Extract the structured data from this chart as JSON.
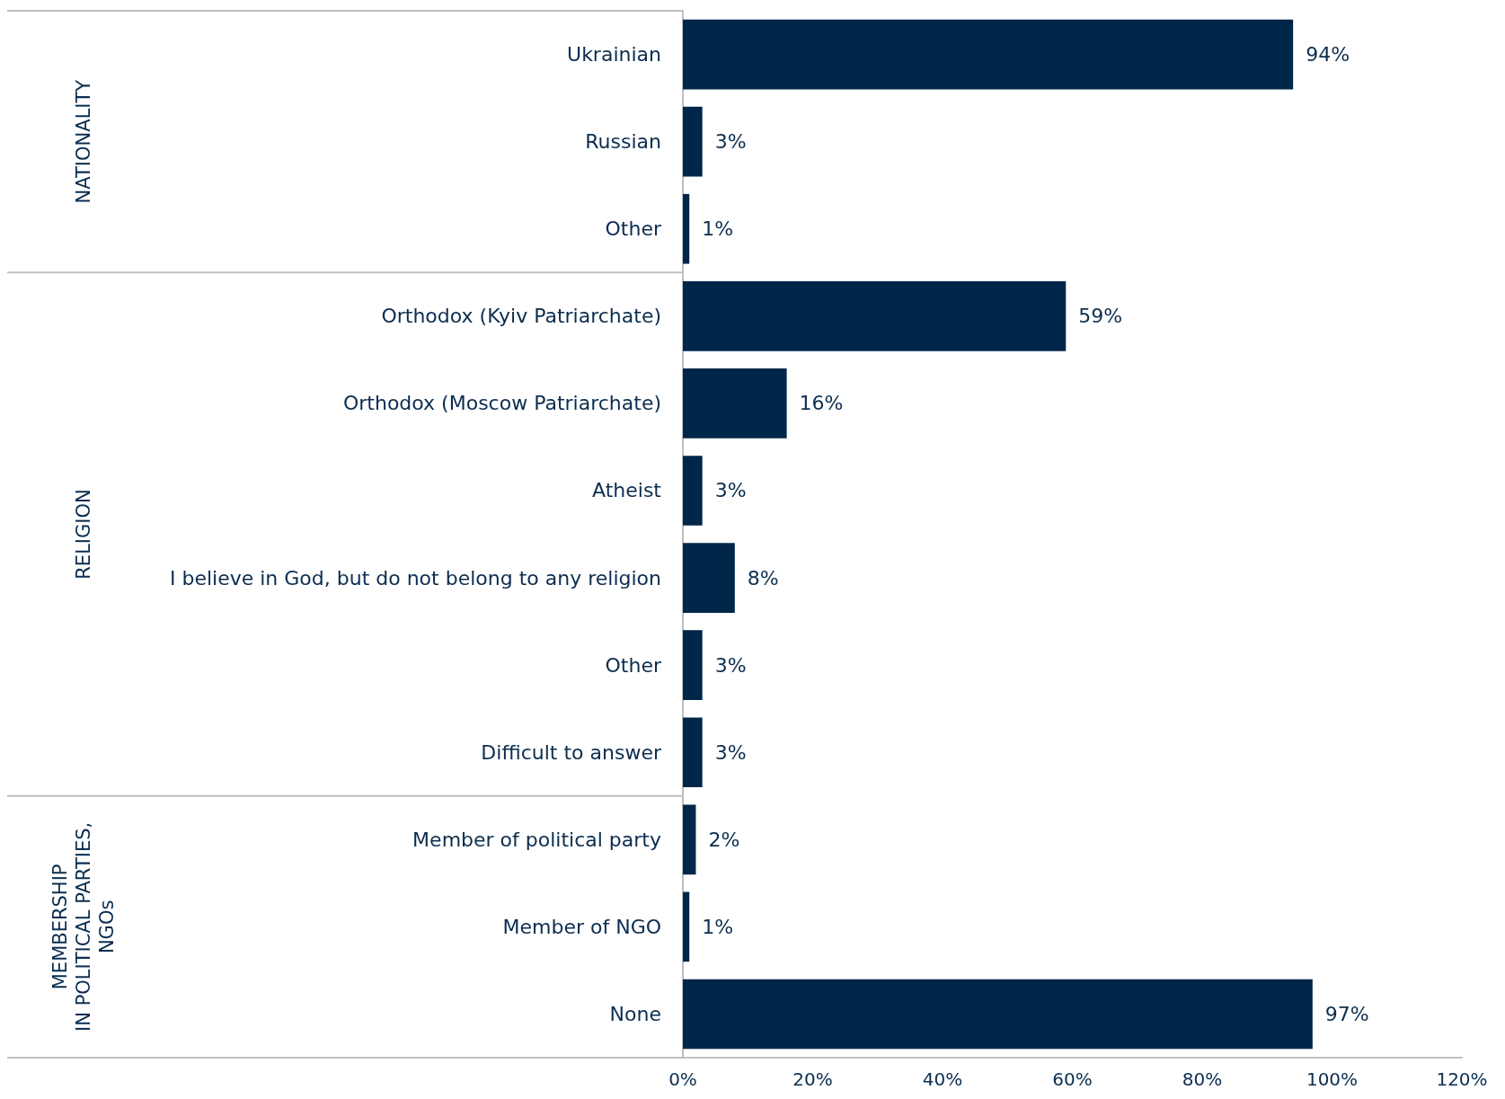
{
  "chart_data": {
    "type": "bar",
    "orientation": "horizontal",
    "categories": [
      "Ukrainian",
      "Russian",
      "Other",
      "Orthodox (Kyiv Patriarchate)",
      "Orthodox (Moscow Patriarchate)",
      "Atheist",
      "I believe in God, but do not belong to any religion",
      "Other",
      "Difficult to answer",
      "Member of political party",
      "Member of NGO",
      "None"
    ],
    "values": [
      94,
      3,
      1,
      59,
      16,
      3,
      8,
      3,
      3,
      2,
      1,
      97
    ],
    "value_labels": [
      "94%",
      "3%",
      "1%",
      "59%",
      "16%",
      "3%",
      "8%",
      "3%",
      "3%",
      "2%",
      "1%",
      "97%"
    ],
    "color": "#00264a",
    "xlim": [
      0,
      120
    ],
    "xticks": [
      {
        "value": 0,
        "label": "0%"
      },
      {
        "value": 20,
        "label": "20%"
      },
      {
        "value": 40,
        "label": "40%"
      },
      {
        "value": 60,
        "label": "60%"
      },
      {
        "value": 80,
        "label": "80%"
      },
      {
        "value": 100,
        "label": "100%"
      },
      {
        "value": 120,
        "label": "120%"
      }
    ],
    "grid": false,
    "annotations": [
      "NATIONALITY",
      "RELIGION",
      "MEMBERSHIP\nIN POLITICAL PARTIES,\nNGOs"
    ]
  }
}
